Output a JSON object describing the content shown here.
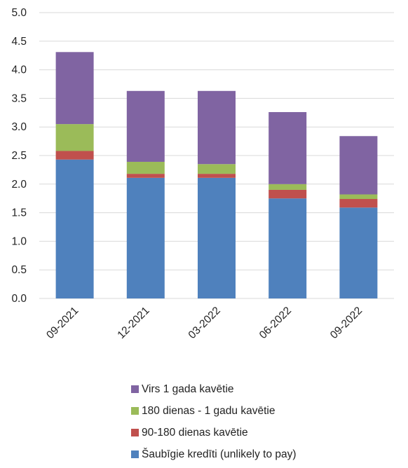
{
  "chart_data": {
    "type": "bar",
    "stacked": true,
    "categories": [
      "09-2021",
      "12-2021",
      "03-2022",
      "06-2022",
      "09-2022"
    ],
    "series": [
      {
        "name": "Šaubīgie kredīti (unlikely to pay)",
        "color": "#4f81bd",
        "values": [
          2.43,
          2.11,
          2.11,
          1.75,
          1.59
        ]
      },
      {
        "name": "90-180 dienas kavētie",
        "color": "#c0504d",
        "values": [
          0.15,
          0.07,
          0.07,
          0.15,
          0.15
        ]
      },
      {
        "name": "180 dienas - 1 gadu kavētie",
        "color": "#9bbb59",
        "values": [
          0.47,
          0.21,
          0.17,
          0.1,
          0.08
        ]
      },
      {
        "name": "Virs 1 gada kavētie",
        "color": "#8064a2",
        "values": [
          1.26,
          1.24,
          1.28,
          1.26,
          1.02
        ]
      }
    ],
    "yticks": [
      "0.0",
      "0.5",
      "1.0",
      "1.5",
      "2.0",
      "2.5",
      "3.0",
      "3.5",
      "4.0",
      "4.5",
      "5.0"
    ],
    "ylim": [
      0,
      5
    ],
    "grid": true,
    "legend_position": "bottom"
  }
}
